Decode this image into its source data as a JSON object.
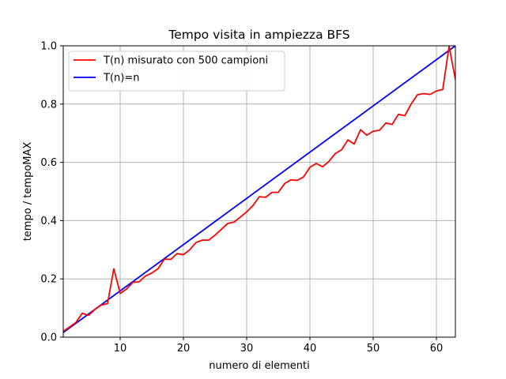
{
  "chart_data": {
    "type": "line",
    "title": "Tempo visita in ampiezza BFS",
    "xlabel": "numero di elementi",
    "ylabel": "tempo / tempoMAX",
    "xlim": [
      1,
      63
    ],
    "ylim": [
      0.0,
      1.0
    ],
    "xticks": [
      10,
      20,
      30,
      40,
      50,
      60
    ],
    "xtick_labels": [
      "10",
      "20",
      "30",
      "40",
      "50",
      "60"
    ],
    "yticks": [
      0.0,
      0.2,
      0.4,
      0.6,
      0.8,
      1.0
    ],
    "ytick_labels": [
      "0.0",
      "0.2",
      "0.4",
      "0.6",
      "0.8",
      "1.0"
    ],
    "grid": true,
    "legend_position": "top-left",
    "series": [
      {
        "name": "T(n) misurato con 500 campioni",
        "color": "#ff0000",
        "x": [
          1,
          2,
          3,
          4,
          5,
          6,
          7,
          8,
          9,
          10,
          11,
          12,
          13,
          14,
          15,
          16,
          17,
          18,
          19,
          20,
          21,
          22,
          23,
          24,
          25,
          26,
          27,
          28,
          29,
          30,
          31,
          32,
          33,
          34,
          35,
          36,
          37,
          38,
          39,
          40,
          41,
          42,
          43,
          44,
          45,
          46,
          47,
          48,
          49,
          50,
          51,
          52,
          53,
          54,
          55,
          56,
          57,
          58,
          59,
          60,
          61,
          62,
          63
        ],
        "y": [
          0.02,
          0.035,
          0.05,
          0.082,
          0.075,
          0.095,
          0.11,
          0.115,
          0.235,
          0.15,
          0.165,
          0.188,
          0.19,
          0.21,
          0.22,
          0.235,
          0.268,
          0.267,
          0.287,
          0.283,
          0.3,
          0.325,
          0.333,
          0.333,
          0.35,
          0.37,
          0.39,
          0.395,
          0.412,
          0.43,
          0.452,
          0.482,
          0.48,
          0.497,
          0.497,
          0.527,
          0.54,
          0.538,
          0.55,
          0.583,
          0.596,
          0.585,
          0.603,
          0.63,
          0.643,
          0.677,
          0.663,
          0.712,
          0.693,
          0.707,
          0.71,
          0.735,
          0.73,
          0.765,
          0.76,
          0.8,
          0.832,
          0.836,
          0.833,
          0.845,
          0.85,
          0.998,
          0.885
        ]
      },
      {
        "name": "T(n)=n",
        "color": "#0000ff",
        "x": [
          1,
          63
        ],
        "y": [
          0.016,
          1.0
        ]
      }
    ]
  }
}
